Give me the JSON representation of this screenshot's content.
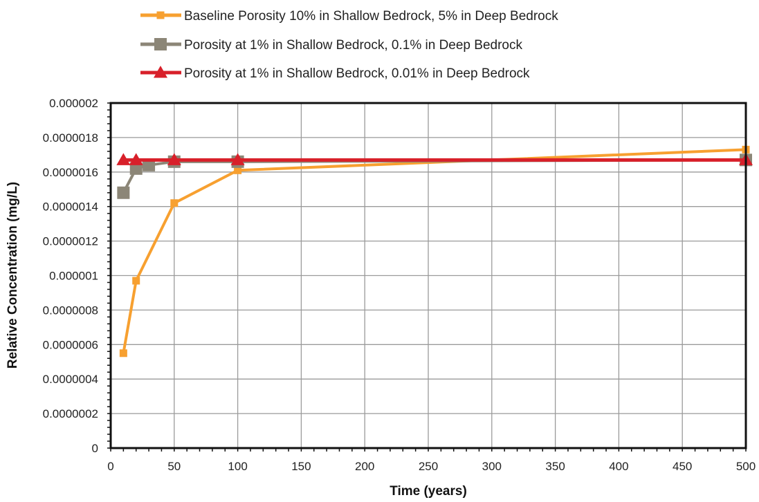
{
  "chart_data": {
    "type": "line",
    "xlabel": "Time (years)",
    "ylabel": "Relative Concentration (mg/L)",
    "xlim": [
      0,
      500
    ],
    "ylim": [
      0,
      2e-06
    ],
    "grid": true,
    "legend_position": "top",
    "x_tick_labels": [
      "0",
      "50",
      "100",
      "150",
      "200",
      "250",
      "300",
      "350",
      "400",
      "450",
      "500"
    ],
    "x_ticks": [
      0,
      50,
      100,
      150,
      200,
      250,
      300,
      350,
      400,
      450,
      500
    ],
    "y_tick_labels": [
      "0",
      "0.0000002",
      "0.0000004",
      "0.0000006",
      "0.0000008",
      "0.000001",
      "0.0000012",
      "0.0000014",
      "0.0000016",
      "0.0000018",
      "0.000002"
    ],
    "y_ticks": [
      0,
      2e-07,
      4e-07,
      6e-07,
      8e-07,
      1e-06,
      1.2e-06,
      1.4e-06,
      1.6e-06,
      1.8e-06,
      2e-06
    ],
    "series": [
      {
        "name": "Baseline Porosity 10% in Shallow Bedrock, 5% in Deep Bedrock",
        "color": "#f7a030",
        "marker": "square-small",
        "x": [
          10,
          20,
          50,
          100,
          500
        ],
        "y": [
          5.5e-07,
          9.7e-07,
          1.42e-06,
          1.61e-06,
          1.73e-06
        ]
      },
      {
        "name": "Porosity at 1% in Shallow Bedrock, 0.1% in Deep Bedrock",
        "color": "#8c8677",
        "marker": "square-large",
        "x": [
          10,
          20,
          30,
          50,
          100,
          500
        ],
        "y": [
          1.48e-06,
          1.62e-06,
          1.64e-06,
          1.66e-06,
          1.66e-06,
          1.67e-06
        ]
      },
      {
        "name": "Porosity at 1% in Shallow Bedrock, 0.01% in Deep Bedrock",
        "color": "#d8202a",
        "marker": "triangle",
        "x": [
          10,
          20,
          50,
          100,
          500
        ],
        "y": [
          1.67e-06,
          1.67e-06,
          1.67e-06,
          1.67e-06,
          1.67e-06
        ]
      }
    ]
  }
}
